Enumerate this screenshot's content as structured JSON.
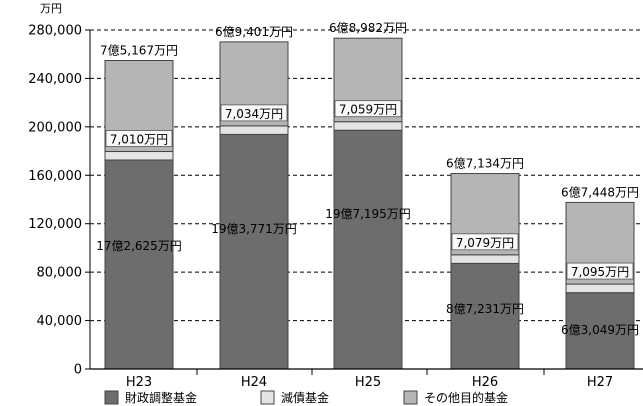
{
  "chart_data": {
    "type": "bar",
    "stacked": true,
    "unit": "万円",
    "ylim": [
      0,
      280000
    ],
    "yticks": [
      {
        "value": 0,
        "label": "0"
      },
      {
        "value": 40000,
        "label": "40,000"
      },
      {
        "value": 80000,
        "label": "80,000"
      },
      {
        "value": 120000,
        "label": "120,000"
      },
      {
        "value": 160000,
        "label": "160,000"
      },
      {
        "value": 200000,
        "label": "200,000"
      },
      {
        "value": 240000,
        "label": "240,000"
      },
      {
        "value": 280000,
        "label": "280,000"
      }
    ],
    "grid": "horizontal-dashed",
    "legend_position": "bottom",
    "categories": [
      "H23",
      "H24",
      "H25",
      "H26",
      "H27"
    ],
    "series": [
      {
        "name": "財政調整基金",
        "color": "#6d6d6d",
        "values": [
          172625,
          193771,
          197195,
          87231,
          63049
        ],
        "labels": [
          "17億2,625万円",
          "19億3,771万円",
          "19億7,195万円",
          "8億7,231万円",
          "6億3,049万円"
        ]
      },
      {
        "name": "減債基金",
        "color": "#e4e4e4",
        "values": [
          7010,
          7034,
          7059,
          7079,
          7095
        ],
        "labels": [
          "7,010万円",
          "7,034万円",
          "7,059万円",
          "7,079万円",
          "7,095万円"
        ]
      },
      {
        "name": "その他目的基金",
        "color": "#b5b5b5",
        "values": [
          75167,
          69401,
          68982,
          67134,
          67448
        ],
        "labels": [
          "7億5,167万円",
          "6億9,401万円",
          "6億8,982万円",
          "6億7,134万円",
          "6億7,448万円"
        ]
      }
    ]
  }
}
